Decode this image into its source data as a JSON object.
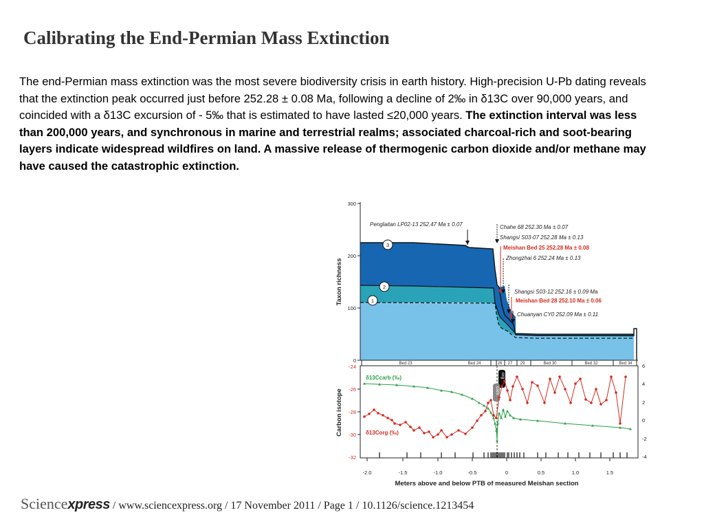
{
  "title": "Calibrating the End-Permian Mass Extinction",
  "paragraph": {
    "normal": "The end-Permian mass extinction was the most severe biodiversity crisis in earth history. High-precision U-Pb dating reveals that the extinction peak occurred just before 252.28 ± 0.08 Ma, following a decline of 2‰ in δ13C over 90,000 years, and coincided with a δ13C excursion of - 5‰ that is estimated to have lasted ≤20,000 years.",
    "bold": "The extinction interval was less than 200,000 years, and synchronous in marine and terrestrial realms; associated charcoal-rich and soot-bearing layers indicate widespread wildfires on land. A massive release of thermogenic carbon dioxide and/or methane may have caused the catastrophic extinction."
  },
  "figure": {
    "top_panel": {
      "ylabel": "Taxon richness",
      "yticks": [
        "300",
        "200",
        "100",
        "0"
      ],
      "curve_labels": [
        "3",
        "2",
        "1"
      ],
      "annotations": {
        "penglaitan": "Penglaitan LP02-13  252.47 Ma ± 0.07",
        "chahe": "Chahe 68  252.30 Ma ± 0.07",
        "shangsi_s0307": "Shangsi S03-07  252.28 Ma ± 0.13",
        "meishan_bed25": "Meishan Bed 25  252.28 Ma ± 0.08",
        "zhongzhai": "Zhongzhai 6  252.24 Ma ± 0.13",
        "shangsi_s0312": "Shangsi  S03-12  252.16 ± 0.09 Ma",
        "meishan_bed28": "Meishan Bed 28  252.10 Ma ± 0.06",
        "chuanyan": "Chuanyan  CY0  252.09 Ma ± 0.11"
      },
      "beds": [
        "Bed 23",
        "Bed 24",
        "26",
        "27",
        "29",
        "Bed 30",
        "Bed 32",
        "Bed 34"
      ]
    },
    "bottom_panel": {
      "ylabel": "Carbon isotope",
      "xlabel": "Meters above and below PTB of measured Meishan section",
      "left_ticks": [
        "-24",
        "-26",
        "-28",
        "-30",
        "-32"
      ],
      "right_ticks": [
        "6",
        "4",
        "2",
        "0",
        "-2",
        "-4"
      ],
      "x_ticks": [
        "-2.0",
        "-1.5",
        "-1.0",
        "-0.5",
        "0",
        "0.5",
        "1.0",
        "1.5"
      ],
      "series_carb": "δ13Ccarb (‰)",
      "series_org": "δ13Corg (‰)",
      "marker_carb": "carb",
      "marker_org": "org"
    },
    "colors": {
      "dark_blue": "#1766b2",
      "mid_teal": "#2aa3b8",
      "light_blue": "#78c2ea",
      "green": "#27a045",
      "red": "#d42b1e"
    }
  },
  "footer": {
    "brand_light": "Science",
    "brand_bold": "xpress",
    "citation": " / www.sciencexpress.org / 17 November 2011 / Page 1 / 10.1126/science.1213454"
  }
}
